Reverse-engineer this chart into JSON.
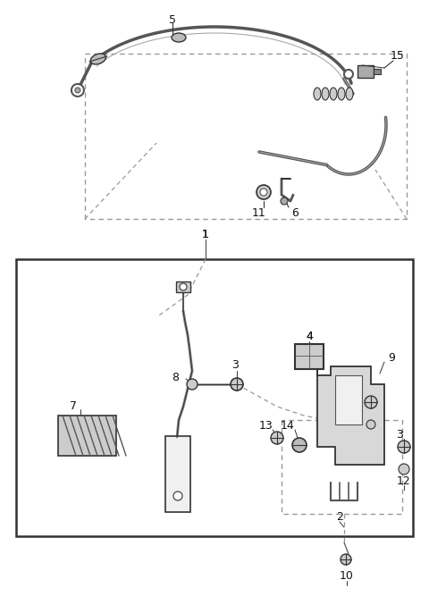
{
  "bg_color": "#ffffff",
  "line_color": "#333333",
  "fig_width": 4.8,
  "fig_height": 6.77,
  "dpi": 100
}
